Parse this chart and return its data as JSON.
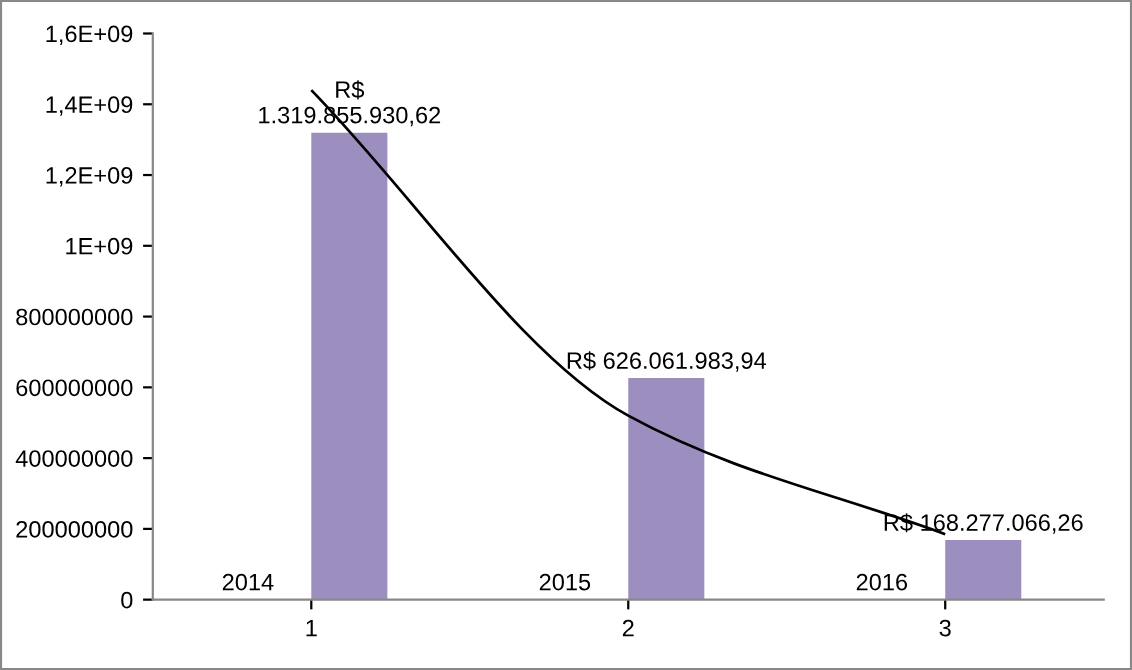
{
  "chart_data": {
    "type": "bar",
    "categories": [
      "1",
      "2",
      "3"
    ],
    "series": [
      {
        "color": "#9c8fbf",
        "values": [
          1319855930.62,
          626061983.94,
          168277066.26
        ],
        "value_labels": [
          "R$\n1.319.855.930,62",
          "R$ 626.061.983,94",
          "R$ 168.277.066,26"
        ]
      },
      {
        "type": "line",
        "color": "#000000",
        "values": [
          1440000000,
          520000000,
          185000000
        ]
      }
    ],
    "annotations": [
      {
        "text": "2014",
        "x": "1",
        "y": 0
      },
      {
        "text": "2015",
        "x": "2",
        "y": 0
      },
      {
        "text": "2016",
        "x": "3",
        "y": 0
      }
    ],
    "ylim": [
      0,
      1600000000
    ],
    "yticks": [
      0,
      {
        "value": 200000000,
        "label": "200000000"
      },
      {
        "value": 400000000,
        "label": "400000000"
      },
      {
        "value": 600000000,
        "label": "600000000"
      },
      {
        "value": 800000000,
        "label": "800000000"
      },
      {
        "value": 1000000000,
        "label": "1E+09"
      },
      {
        "value": 1200000000,
        "label": "1,2E+09"
      },
      {
        "value": 1400000000,
        "label": "1,4E+09"
      },
      {
        "value": 1600000000,
        "label": "1,6E+09"
      }
    ],
    "grid": false,
    "legend": false
  }
}
